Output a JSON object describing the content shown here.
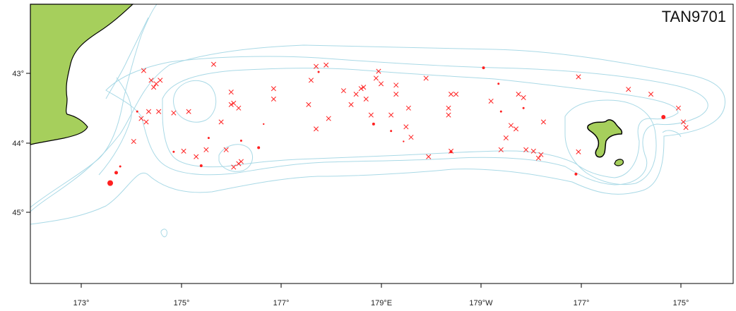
{
  "map": {
    "survey_id": "TAN9701",
    "x_tick_labels": [
      "173°",
      "175°",
      "177°",
      "179°E",
      "179°W",
      "177°",
      "175°"
    ],
    "y_tick_labels": [
      "43°",
      "44°",
      "45°"
    ],
    "colors": {
      "land": "#a6cf5c",
      "land_outline": "#000000",
      "contour": "#a9d9e6",
      "station": "#ff2020",
      "frame": "#000000"
    },
    "layers": [
      "land",
      "depth-contours",
      "trawl-stations",
      "catch-circles"
    ]
  },
  "chart_data": {
    "type": "scatter",
    "title": "TAN9701",
    "xlabel": "",
    "ylabel": "",
    "x_ticks": [
      "173°",
      "175°",
      "177°",
      "179°E",
      "179°W",
      "177°",
      "175°"
    ],
    "y_ticks": [
      "43°",
      "44°",
      "45°"
    ],
    "xlim_lon_east": [
      171.9,
      186.6
    ],
    "ylim_lat_south": [
      41.95,
      46.05
    ],
    "station_crosses": [
      [
        174.25,
        42.96
      ],
      [
        174.4,
        43.1
      ],
      [
        174.5,
        43.15
      ],
      [
        174.45,
        43.2
      ],
      [
        174.58,
        43.1
      ],
      [
        174.2,
        43.65
      ],
      [
        174.35,
        43.55
      ],
      [
        174.55,
        43.55
      ],
      [
        174.05,
        43.98
      ],
      [
        174.3,
        43.7
      ],
      [
        174.85,
        43.57
      ],
      [
        175.15,
        43.55
      ],
      [
        175.65,
        42.87
      ],
      [
        175.8,
        43.7
      ],
      [
        176.0,
        43.27
      ],
      [
        176.05,
        43.43
      ],
      [
        176.0,
        43.45
      ],
      [
        176.15,
        43.5
      ],
      [
        175.05,
        44.12
      ],
      [
        175.3,
        44.2
      ],
      [
        175.5,
        44.1
      ],
      [
        175.9,
        44.1
      ],
      [
        176.05,
        44.35
      ],
      [
        176.15,
        44.3
      ],
      [
        176.2,
        44.27
      ],
      [
        176.85,
        43.22
      ],
      [
        176.85,
        43.37
      ],
      [
        177.6,
        43.1
      ],
      [
        177.55,
        43.45
      ],
      [
        177.7,
        42.9
      ],
      [
        177.9,
        42.88
      ],
      [
        177.7,
        43.8
      ],
      [
        177.95,
        43.65
      ],
      [
        178.25,
        43.25
      ],
      [
        178.4,
        43.45
      ],
      [
        178.5,
        43.3
      ],
      [
        178.6,
        43.22
      ],
      [
        178.65,
        43.2
      ],
      [
        178.7,
        43.37
      ],
      [
        178.9,
        43.07
      ],
      [
        178.95,
        42.97
      ],
      [
        178.8,
        43.6
      ],
      [
        179.0,
        43.15
      ],
      [
        179.2,
        43.6
      ],
      [
        179.3,
        43.17
      ],
      [
        179.3,
        43.3
      ],
      [
        179.55,
        43.5
      ],
      [
        179.5,
        43.77
      ],
      [
        179.6,
        43.92
      ],
      [
        179.9,
        43.07
      ],
      [
        179.95,
        44.2
      ],
      [
        180.35,
        43.5
      ],
      [
        180.35,
        43.6
      ],
      [
        180.4,
        43.3
      ],
      [
        180.5,
        43.3
      ],
      [
        180.4,
        44.12
      ],
      [
        181.2,
        43.4
      ],
      [
        181.4,
        44.1
      ],
      [
        181.5,
        43.93
      ],
      [
        181.7,
        43.8
      ],
      [
        181.6,
        43.75
      ],
      [
        181.75,
        43.3
      ],
      [
        181.85,
        43.35
      ],
      [
        181.9,
        44.1
      ],
      [
        182.05,
        44.12
      ],
      [
        182.2,
        44.17
      ],
      [
        182.25,
        43.7
      ],
      [
        182.15,
        44.22
      ],
      [
        182.95,
        43.05
      ],
      [
        183.95,
        43.23
      ],
      [
        184.4,
        43.3
      ],
      [
        184.95,
        43.5
      ],
      [
        185.05,
        43.7
      ],
      [
        185.1,
        43.78
      ],
      [
        182.95,
        44.13
      ]
    ],
    "catch_circles": [
      [
        173.7,
        44.43,
        2.5
      ],
      [
        173.58,
        44.58,
        4
      ],
      [
        173.78,
        44.34,
        1.5
      ],
      [
        174.12,
        43.55,
        1.5
      ],
      [
        174.85,
        44.13,
        1.5
      ],
      [
        175.4,
        44.33,
        2
      ],
      [
        175.55,
        43.93,
        1.5
      ],
      [
        176.2,
        43.97,
        1.5
      ],
      [
        176.55,
        44.07,
        2
      ],
      [
        176.65,
        43.73,
        1.2
      ],
      [
        177.75,
        42.98,
        1.5
      ],
      [
        178.85,
        43.73,
        2
      ],
      [
        179.2,
        43.83,
        1.5
      ],
      [
        179.45,
        43.98,
        1.2
      ],
      [
        180.4,
        44.13,
        2
      ],
      [
        181.4,
        43.55,
        1.5
      ],
      [
        181.05,
        42.92,
        2
      ],
      [
        181.35,
        43.15,
        1.5
      ],
      [
        181.85,
        43.5,
        1.5
      ],
      [
        182.9,
        44.45,
        2
      ],
      [
        184.65,
        43.63,
        3
      ]
    ]
  }
}
